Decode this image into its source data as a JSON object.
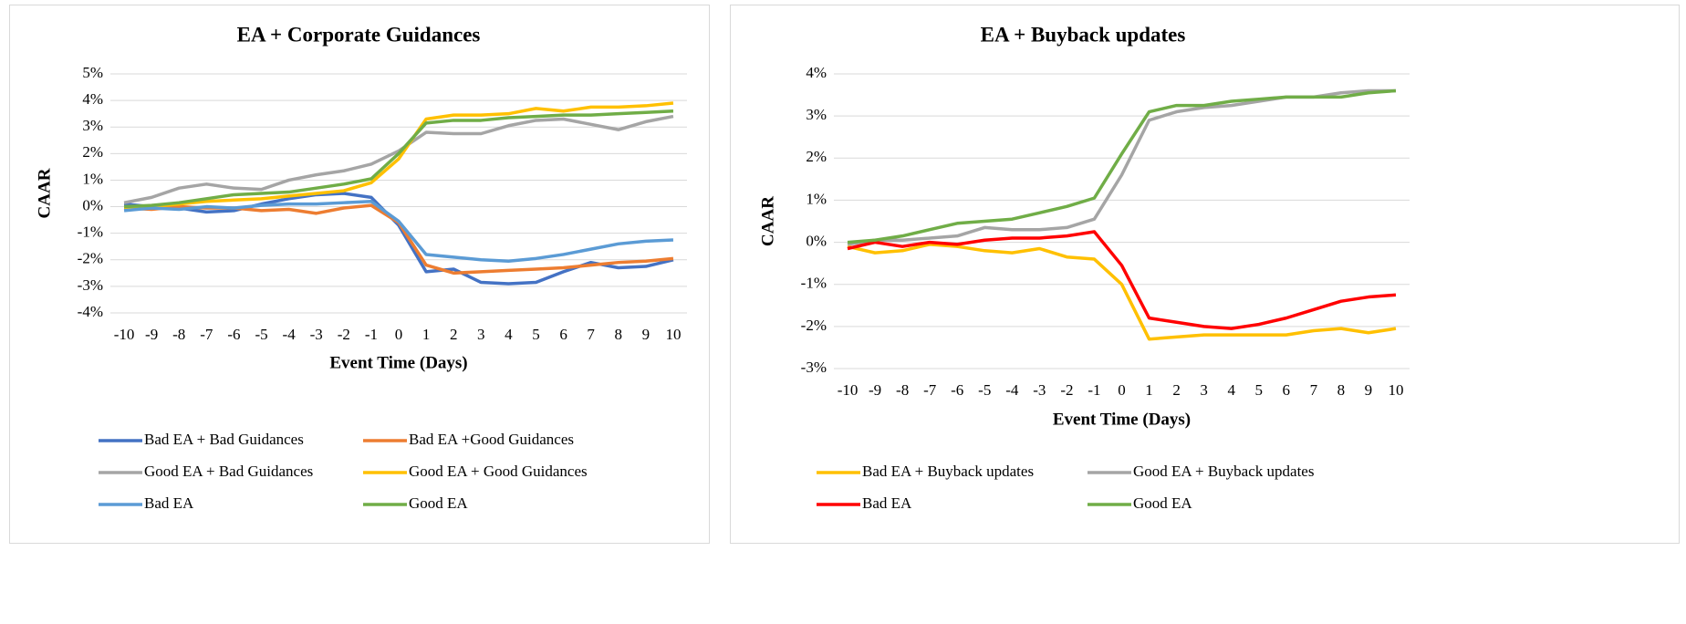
{
  "chart_data": [
    {
      "type": "line",
      "title": "EA + Corporate Guidances",
      "x_label": "Event Time (Days)",
      "y_label": "CAAR",
      "categories": [
        "-10",
        "-9",
        "-8",
        "-7",
        "-6",
        "-5",
        "-4",
        "-3",
        "-2",
        "-1",
        "0",
        "1",
        "2",
        "3",
        "4",
        "5",
        "6",
        "7",
        "8",
        "9",
        "10"
      ],
      "ylim": [
        -4,
        5
      ],
      "yticks": [
        {
          "value": -4,
          "label": "-4%"
        },
        {
          "value": -3,
          "label": "-3%"
        },
        {
          "value": -2,
          "label": "-2%"
        },
        {
          "value": -1,
          "label": "-1%"
        },
        {
          "value": 0,
          "label": "0%"
        },
        {
          "value": 1,
          "label": "1%"
        },
        {
          "value": 2,
          "label": "2%"
        },
        {
          "value": 3,
          "label": "3%"
        },
        {
          "value": 4,
          "label": "4%"
        },
        {
          "value": 5,
          "label": "5%"
        }
      ],
      "grid": true,
      "legend": "bottom",
      "series": [
        {
          "name": "Bad EA + Bad Guidances",
          "color": "#4472c4",
          "values": [
            0.1,
            0,
            -0.05,
            -0.2,
            -0.15,
            0.1,
            0.3,
            0.45,
            0.5,
            0.35,
            -0.7,
            -2.45,
            -2.35,
            -2.85,
            -2.9,
            -2.85,
            -2.45,
            -2.1,
            -2.3,
            -2.25,
            -2.0
          ]
        },
        {
          "name": "Bad EA +Good Guidances",
          "color": "#ed7d31",
          "values": [
            -0.05,
            -0.1,
            0,
            -0.05,
            -0.05,
            -0.15,
            -0.1,
            -0.25,
            -0.05,
            0.05,
            -0.6,
            -2.2,
            -2.5,
            -2.45,
            -2.4,
            -2.35,
            -2.3,
            -2.2,
            -2.1,
            -2.05,
            -1.95
          ]
        },
        {
          "name": "Good EA + Bad Guidances",
          "color": "#a5a5a5",
          "values": [
            0.15,
            0.35,
            0.7,
            0.85,
            0.7,
            0.65,
            1.0,
            1.2,
            1.35,
            1.6,
            2.1,
            2.8,
            2.75,
            2.75,
            3.05,
            3.25,
            3.3,
            3.1,
            2.9,
            3.2,
            3.4
          ]
        },
        {
          "name": "Good EA + Good Guidances",
          "color": "#ffc000",
          "values": [
            -0.05,
            0,
            0.1,
            0.2,
            0.25,
            0.3,
            0.4,
            0.5,
            0.6,
            0.9,
            1.8,
            3.3,
            3.45,
            3.45,
            3.5,
            3.7,
            3.6,
            3.75,
            3.75,
            3.8,
            3.9
          ]
        },
        {
          "name": "Bad EA",
          "color": "#5b9bd5",
          "values": [
            -0.15,
            -0.05,
            -0.1,
            0,
            -0.05,
            0.05,
            0.1,
            0.1,
            0.15,
            0.2,
            -0.55,
            -1.8,
            -1.9,
            -2.0,
            -2.05,
            -1.95,
            -1.8,
            -1.6,
            -1.4,
            -1.3,
            -1.25
          ]
        },
        {
          "name": "Good EA",
          "color": "#70ad47",
          "values": [
            0,
            0.05,
            0.15,
            0.3,
            0.45,
            0.5,
            0.55,
            0.7,
            0.85,
            1.05,
            2.0,
            3.15,
            3.25,
            3.25,
            3.35,
            3.4,
            3.45,
            3.45,
            3.5,
            3.55,
            3.6
          ]
        }
      ]
    },
    {
      "type": "line",
      "title": "EA + Buyback updates",
      "x_label": "Event Time (Days)",
      "y_label": "CAAR",
      "categories": [
        "-10",
        "-9",
        "-8",
        "-7",
        "-6",
        "-5",
        "-4",
        "-3",
        "-2",
        "-1",
        "0",
        "1",
        "2",
        "3",
        "4",
        "5",
        "6",
        "7",
        "8",
        "9",
        "10"
      ],
      "ylim": [
        -3,
        4
      ],
      "yticks": [
        {
          "value": -3,
          "label": "-3%"
        },
        {
          "value": -2,
          "label": "-2%"
        },
        {
          "value": -1,
          "label": "-1%"
        },
        {
          "value": 0,
          "label": "0%"
        },
        {
          "value": 1,
          "label": "1%"
        },
        {
          "value": 2,
          "label": "2%"
        },
        {
          "value": 3,
          "label": "3%"
        },
        {
          "value": 4,
          "label": "4%"
        }
      ],
      "grid": true,
      "legend": "bottom",
      "series": [
        {
          "name": "Bad EA + Buyback updates",
          "color": "#ffc000",
          "values": [
            -0.1,
            -0.25,
            -0.2,
            -0.05,
            -0.1,
            -0.2,
            -0.25,
            -0.15,
            -0.35,
            -0.4,
            -1.0,
            -2.3,
            -2.25,
            -2.2,
            -2.2,
            -2.2,
            -2.2,
            -2.1,
            -2.05,
            -2.15,
            -2.05
          ]
        },
        {
          "name": "Good EA + Buyback updates",
          "color": "#a5a5a5",
          "values": [
            -0.05,
            0.05,
            0.05,
            0.1,
            0.15,
            0.35,
            0.3,
            0.3,
            0.35,
            0.55,
            1.6,
            2.9,
            3.1,
            3.2,
            3.25,
            3.35,
            3.45,
            3.45,
            3.55,
            3.6,
            3.6
          ]
        },
        {
          "name": "Bad EA",
          "color": "#ff0000",
          "values": [
            -0.15,
            0,
            -0.1,
            0,
            -0.05,
            0.05,
            0.1,
            0.1,
            0.15,
            0.25,
            -0.55,
            -1.8,
            -1.9,
            -2.0,
            -2.05,
            -1.95,
            -1.8,
            -1.6,
            -1.4,
            -1.3,
            -1.25
          ]
        },
        {
          "name": "Good EA",
          "color": "#70ad47",
          "values": [
            0,
            0.05,
            0.15,
            0.3,
            0.45,
            0.5,
            0.55,
            0.7,
            0.85,
            1.05,
            2.1,
            3.1,
            3.25,
            3.25,
            3.35,
            3.4,
            3.45,
            3.45,
            3.45,
            3.55,
            3.6
          ]
        }
      ]
    }
  ]
}
